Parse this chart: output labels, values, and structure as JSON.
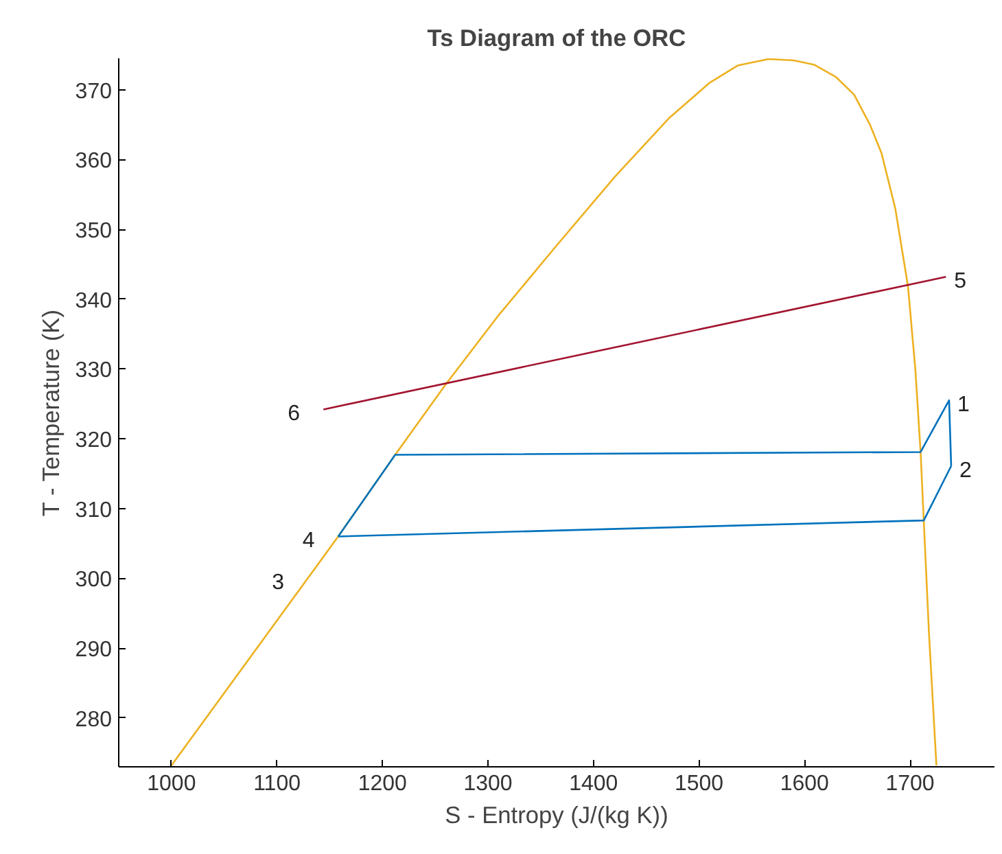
{
  "chart_data": {
    "type": "line",
    "title": "Ts Diagram of the ORC",
    "xlabel": "S - Entropy (J/(kg K))",
    "ylabel": "T - Temperature (K)",
    "series": [
      {
        "color": "#edb120",
        "x": [
          1000,
          1158,
          1212,
          1260,
          1309,
          1364,
          1420,
          1472,
          1510,
          1537,
          1566,
          1590,
          1609,
          1630,
          1647,
          1662,
          1673,
          1686,
          1698,
          1705,
          1710,
          1713,
          1718,
          1725
        ],
        "values": [
          273.2,
          306,
          317.7,
          327.8,
          337.5,
          347.5,
          357.5,
          366,
          371,
          373.5,
          374.4,
          374.2,
          373.6,
          371.8,
          369.3,
          365,
          360.9,
          353,
          341.9,
          330,
          318.1,
          308.3,
          292,
          273.2
        ]
      },
      {
        "color": "#a2142f",
        "x": [
          1144,
          1734
        ],
        "values": [
          324.2,
          343.2
        ]
      },
      {
        "color": "#0072bd",
        "x": [
          1158,
          1212,
          1710,
          1737,
          1739
        ],
        "values": [
          306,
          317.7,
          318.1,
          325.5,
          316.1
        ]
      },
      {
        "color": "#0072bd",
        "x": [
          1158,
          1713,
          1739
        ],
        "values": [
          306,
          308.3,
          316.1
        ]
      }
    ],
    "annotations": [
      {
        "text": "1",
        "x": 1737,
        "y": 325.5
      },
      {
        "text": "2",
        "x": 1739,
        "y": 316.1
      },
      {
        "text": "3",
        "x": 1129,
        "y": 300
      },
      {
        "text": "4",
        "x": 1158,
        "y": 306
      },
      {
        "text": "5",
        "x": 1734,
        "y": 343.2
      },
      {
        "text": "6",
        "x": 1144,
        "y": 324.2
      }
    ],
    "xlim": [
      950,
      1780
    ],
    "ylim": [
      273,
      374.5
    ],
    "xticks": [
      1000,
      1100,
      1200,
      1300,
      1400,
      1500,
      1600,
      1700
    ],
    "yticks": [
      280,
      290,
      300,
      310,
      320,
      330,
      340,
      350,
      360,
      370
    ],
    "grid": false,
    "marker": "none",
    "line_style": "solid"
  }
}
